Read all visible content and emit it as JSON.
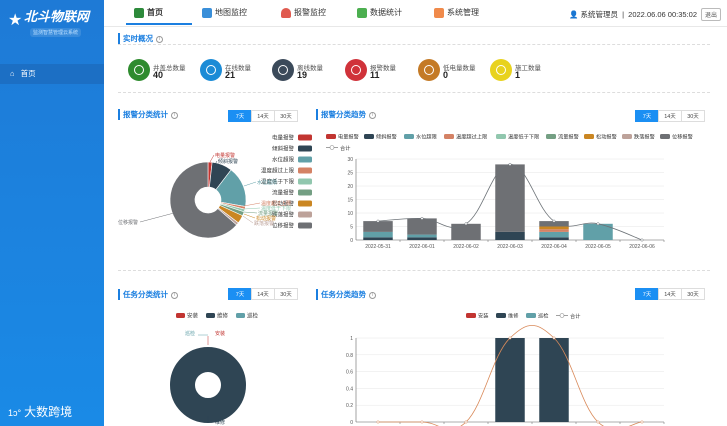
{
  "logo": {
    "main": "北斗物联网",
    "sub": "监测智慧管理云系统"
  },
  "brand": "大数跨境",
  "sidebar": {
    "items": [
      {
        "label": "首页"
      }
    ]
  },
  "tabs": [
    {
      "label": "首页",
      "color": "#2d8a3b"
    },
    {
      "label": "地图监控",
      "color": "#3a8fd9"
    },
    {
      "label": "报警监控",
      "color": "#e05a4f"
    },
    {
      "label": "数据统计",
      "color": "#4caf50"
    },
    {
      "label": "系统管理",
      "color": "#f08a4b"
    }
  ],
  "user": {
    "name": "系统管理员",
    "datetime": "2022.06.06 00:35:02",
    "exit": "退出"
  },
  "realtime": {
    "title": "实时概况",
    "stats": [
      {
        "label": "井盖总数量",
        "value": "40",
        "color": "#2e8b2e"
      },
      {
        "label": "在线数量",
        "value": "21",
        "color": "#1b8bd6"
      },
      {
        "label": "离线数量",
        "value": "19",
        "color": "#3b4a5a"
      },
      {
        "label": "报警数量",
        "value": "11",
        "color": "#d0323a"
      },
      {
        "label": "低电量数量",
        "value": "0",
        "color": "#c47a26"
      },
      {
        "label": "施工数量",
        "value": "1",
        "color": "#e8d21e"
      }
    ]
  },
  "periods": [
    "7天",
    "14天",
    "30天"
  ],
  "panels": {
    "alarm_cat": "报警分类统计",
    "alarm_trend": "报警分类趋势",
    "task_cat": "任务分类统计",
    "task_trend": "任务分类趋势"
  },
  "chart_data": [
    {
      "type": "pie",
      "title": "报警分类统计",
      "legend": [
        "电量报警",
        "倾斜报警",
        "水位超限",
        "温度超过上限",
        "温度低于下限",
        "流量报警",
        "松动报警",
        "跌落报警",
        "位移报警"
      ],
      "colors": [
        "#c23531",
        "#2f4554",
        "#61a0a8",
        "#d48265",
        "#91c7ae",
        "#749f83",
        "#ca8622",
        "#bda29a",
        "#6e7074"
      ],
      "values": [
        0.3,
        1.5,
        3,
        0.2,
        0.2,
        0.3,
        0.6,
        0.2,
        11
      ]
    },
    {
      "type": "bar",
      "title": "报警分类趋势",
      "categories": [
        "2022-05-31",
        "2022-06-01",
        "2022-06-02",
        "2022-06-03",
        "2022-06-04",
        "2022-06-05",
        "2022-06-06"
      ],
      "ylim": [
        0,
        30
      ],
      "yticks": [
        0,
        5,
        10,
        15,
        20,
        25,
        30
      ],
      "series": [
        {
          "name": "电量报警",
          "color": "#c23531",
          "values": [
            0,
            0,
            0,
            0,
            0,
            0,
            0
          ]
        },
        {
          "name": "倾斜报警",
          "color": "#2f4554",
          "values": [
            1,
            1,
            0,
            3,
            1,
            0,
            0
          ]
        },
        {
          "name": "水位超限",
          "color": "#61a0a8",
          "values": [
            2,
            1,
            0,
            0,
            2,
            6,
            0
          ]
        },
        {
          "name": "温度超过上限",
          "color": "#d48265",
          "values": [
            0,
            0,
            0,
            0,
            1,
            0,
            0
          ]
        },
        {
          "name": "温度低于下限",
          "color": "#91c7ae",
          "values": [
            0,
            0,
            0,
            0,
            0,
            0,
            0
          ]
        },
        {
          "name": "流量报警",
          "color": "#749f83",
          "values": [
            0,
            0,
            0,
            0,
            0,
            0,
            0
          ]
        },
        {
          "name": "松动报警",
          "color": "#ca8622",
          "values": [
            0,
            0,
            0,
            0,
            1,
            0,
            0
          ]
        },
        {
          "name": "跌落报警",
          "color": "#bda29a",
          "values": [
            0,
            0,
            0,
            0,
            0,
            0,
            0
          ]
        },
        {
          "name": "位移报警",
          "color": "#6e7074",
          "values": [
            4,
            6,
            6,
            25,
            2,
            0,
            0
          ]
        }
      ],
      "total": {
        "name": "合计",
        "values": [
          7,
          8,
          6,
          28,
          7,
          6,
          0
        ]
      }
    },
    {
      "type": "pie",
      "title": "任务分类统计",
      "legend": [
        "安装",
        "维修",
        "巡检"
      ],
      "colors": [
        "#c23531",
        "#2f4554",
        "#61a0a8"
      ],
      "values": [
        0,
        2,
        0
      ]
    },
    {
      "type": "bar",
      "title": "任务分类趋势",
      "ylim": [
        0,
        1
      ],
      "yticks": [
        0,
        0.2,
        0.4,
        0.6,
        0.8,
        1
      ],
      "series": [
        {
          "name": "安装",
          "color": "#c23531",
          "values": [
            0,
            0,
            0,
            0,
            0,
            0,
            0
          ]
        },
        {
          "name": "维修",
          "color": "#2f4554",
          "values": [
            0,
            0,
            0,
            1,
            1,
            0,
            0
          ]
        },
        {
          "name": "巡检",
          "color": "#61a0a8",
          "values": [
            0,
            0,
            0,
            0,
            0,
            0,
            0
          ]
        }
      ],
      "total": {
        "name": "合计",
        "values": [
          0,
          0,
          0,
          1,
          1,
          0,
          0
        ]
      }
    }
  ]
}
